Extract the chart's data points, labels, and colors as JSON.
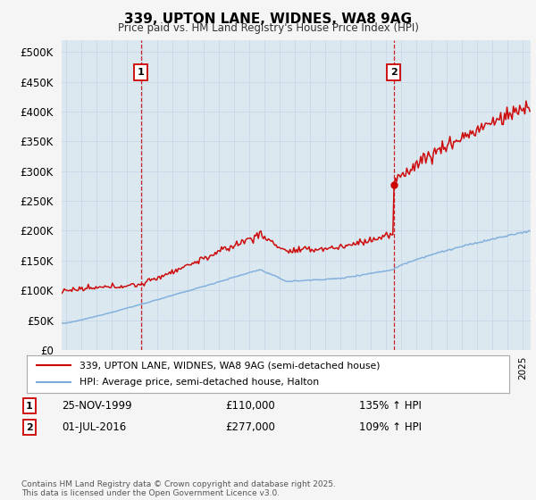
{
  "title": "339, UPTON LANE, WIDNES, WA8 9AG",
  "subtitle": "Price paid vs. HM Land Registry's House Price Index (HPI)",
  "ylim": [
    0,
    520000
  ],
  "yticks": [
    0,
    50000,
    100000,
    150000,
    200000,
    250000,
    300000,
    350000,
    400000,
    450000,
    500000
  ],
  "xlim_start": 1994.7,
  "xlim_end": 2025.5,
  "purchase1_year": 1999.9,
  "purchase1_price": 110000,
  "purchase2_year": 2016.5,
  "purchase2_price": 277000,
  "line_color_property": "#cc0000",
  "line_color_hpi": "#7aabdb",
  "vline_color": "#cc0000",
  "grid_color": "#c8d8e8",
  "plot_bg_color": "#dce8f0",
  "background_color": "#f5f5f5",
  "legend_label_property": "339, UPTON LANE, WIDNES, WA8 9AG (semi-detached house)",
  "legend_label_hpi": "HPI: Average price, semi-detached house, Halton",
  "footer_text": "Contains HM Land Registry data © Crown copyright and database right 2025.\nThis data is licensed under the Open Government Licence v3.0."
}
